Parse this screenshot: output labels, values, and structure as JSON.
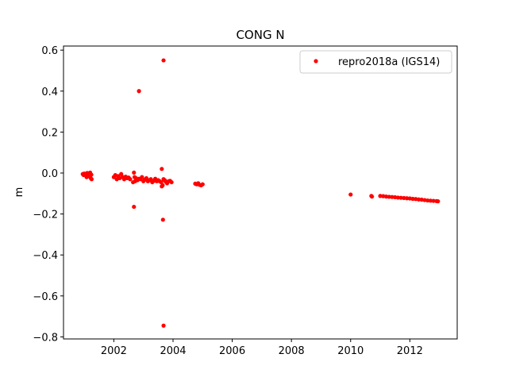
{
  "chart_data": {
    "type": "scatter",
    "title": "CONG N",
    "xlabel": "",
    "ylabel": "m",
    "xlim": [
      2000.3,
      2013.6
    ],
    "ylim": [
      -0.81,
      0.62
    ],
    "xticks": [
      2002,
      2004,
      2006,
      2008,
      2010,
      2012
    ],
    "xtick_labels": [
      "2002",
      "2004",
      "2006",
      "2008",
      "2010",
      "2012"
    ],
    "yticks": [
      -0.8,
      -0.6,
      -0.4,
      -0.2,
      0.0,
      0.2,
      0.4,
      0.6
    ],
    "ytick_labels": [
      "−0.8",
      "−0.6",
      "−0.4",
      "−0.2",
      "0.0",
      "0.2",
      "0.4",
      "0.6"
    ],
    "grid": false,
    "legend_position": "top-right",
    "color": "#ff0000",
    "series": [
      {
        "name": "repro2018a (IGS14)",
        "points": [
          [
            2000.95,
            -0.005
          ],
          [
            2000.98,
            -0.01
          ],
          [
            2001.0,
            -0.003
          ],
          [
            2001.02,
            -0.008
          ],
          [
            2001.05,
            -0.004
          ],
          [
            2001.07,
            -0.012
          ],
          [
            2001.1,
            0.0
          ],
          [
            2001.12,
            -0.006
          ],
          [
            2001.15,
            -0.015
          ],
          [
            2001.17,
            -0.002
          ],
          [
            2001.2,
            0.002
          ],
          [
            2001.22,
            -0.025
          ],
          [
            2001.24,
            -0.008
          ],
          [
            2001.25,
            -0.03
          ],
          [
            2001.08,
            -0.02
          ],
          [
            2001.13,
            -0.01
          ],
          [
            2002.0,
            -0.02
          ],
          [
            2002.05,
            -0.01
          ],
          [
            2002.1,
            -0.03
          ],
          [
            2002.15,
            -0.015
          ],
          [
            2002.2,
            -0.025
          ],
          [
            2002.25,
            -0.005
          ],
          [
            2002.3,
            -0.02
          ],
          [
            2002.35,
            -0.03
          ],
          [
            2002.4,
            -0.018
          ],
          [
            2002.45,
            -0.025
          ],
          [
            2002.5,
            -0.022
          ],
          [
            2002.55,
            -0.03
          ],
          [
            2002.65,
            -0.045
          ],
          [
            2002.7,
            -0.02
          ],
          [
            2002.68,
            0.002
          ],
          [
            2002.72,
            -0.04
          ],
          [
            2002.75,
            -0.025
          ],
          [
            2002.8,
            -0.035
          ],
          [
            2002.85,
            -0.028
          ],
          [
            2002.9,
            -0.03
          ],
          [
            2002.95,
            -0.02
          ],
          [
            2003.0,
            -0.04
          ],
          [
            2003.05,
            -0.032
          ],
          [
            2003.1,
            -0.025
          ],
          [
            2003.15,
            -0.04
          ],
          [
            2003.2,
            -0.035
          ],
          [
            2003.25,
            -0.03
          ],
          [
            2003.3,
            -0.045
          ],
          [
            2003.35,
            -0.038
          ],
          [
            2003.4,
            -0.028
          ],
          [
            2003.45,
            -0.04
          ],
          [
            2003.5,
            -0.035
          ],
          [
            2003.55,
            -0.04
          ],
          [
            2003.6,
            -0.045
          ],
          [
            2003.65,
            -0.06
          ],
          [
            2003.68,
            -0.03
          ],
          [
            2003.72,
            -0.035
          ],
          [
            2003.75,
            -0.042
          ],
          [
            2003.8,
            -0.05
          ],
          [
            2003.85,
            -0.04
          ],
          [
            2003.9,
            -0.038
          ],
          [
            2003.95,
            -0.045
          ],
          [
            2002.85,
            0.4
          ],
          [
            2003.68,
            0.55
          ],
          [
            2003.62,
            0.02
          ],
          [
            2002.68,
            -0.165
          ],
          [
            2003.66,
            -0.228
          ],
          [
            2003.68,
            -0.745
          ],
          [
            2003.62,
            -0.065
          ],
          [
            2004.75,
            -0.052
          ],
          [
            2004.8,
            -0.055
          ],
          [
            2004.85,
            -0.05
          ],
          [
            2004.9,
            -0.058
          ],
          [
            2004.95,
            -0.06
          ],
          [
            2005.0,
            -0.055
          ],
          [
            2010.0,
            -0.105
          ],
          [
            2010.7,
            -0.112
          ],
          [
            2010.72,
            -0.115
          ],
          [
            2011.0,
            -0.112
          ],
          [
            2011.1,
            -0.113
          ],
          [
            2011.2,
            -0.115
          ],
          [
            2011.3,
            -0.116
          ],
          [
            2011.4,
            -0.117
          ],
          [
            2011.5,
            -0.118
          ],
          [
            2011.6,
            -0.12
          ],
          [
            2011.7,
            -0.121
          ],
          [
            2011.8,
            -0.122
          ],
          [
            2011.9,
            -0.123
          ],
          [
            2012.0,
            -0.124
          ],
          [
            2012.1,
            -0.126
          ],
          [
            2012.2,
            -0.127
          ],
          [
            2012.3,
            -0.129
          ],
          [
            2012.4,
            -0.13
          ],
          [
            2012.5,
            -0.132
          ],
          [
            2012.6,
            -0.134
          ],
          [
            2012.7,
            -0.135
          ],
          [
            2012.8,
            -0.136
          ],
          [
            2012.9,
            -0.137
          ],
          [
            2012.95,
            -0.138
          ]
        ]
      }
    ]
  }
}
